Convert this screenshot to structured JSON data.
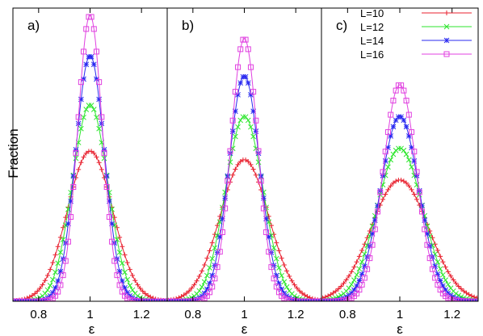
{
  "figure": {
    "ylabel": "Fraction",
    "panel_labels": [
      "a)",
      "b)",
      "c)"
    ]
  },
  "legend": {
    "entries": [
      {
        "label": "L=10",
        "color": "#e8212f",
        "marker": "plus"
      },
      {
        "label": "L=12",
        "color": "#2ee62e",
        "marker": "cross"
      },
      {
        "label": "L=14",
        "color": "#2929f0",
        "marker": "star"
      },
      {
        "label": "L=16",
        "color": "#e040e0",
        "marker": "open-square"
      }
    ],
    "placement": "top-right of panel c"
  },
  "chart_data": [
    {
      "type": "line",
      "panel": "a)",
      "xlabel": "ε",
      "ylabel": "Fraction",
      "xlim": [
        0.7,
        1.3
      ],
      "ylim": [
        0,
        1
      ],
      "xticks": [
        "0.8",
        "1",
        "1.2"
      ],
      "yticks": [],
      "grid": false,
      "model": "gaussian-like peak centered at x0",
      "series": [
        {
          "name": "L=10",
          "peak": 0.52,
          "center": 1.0,
          "sigma": 0.088
        },
        {
          "name": "L=12",
          "peak": 0.68,
          "center": 1.0,
          "sigma": 0.069
        },
        {
          "name": "L=14",
          "peak": 0.85,
          "center": 1.0,
          "sigma": 0.056
        },
        {
          "name": "L=16",
          "peak": 0.99,
          "center": 1.0,
          "sigma": 0.048
        }
      ]
    },
    {
      "type": "line",
      "panel": "b)",
      "xlabel": "ε",
      "ylabel": "",
      "xlim": [
        0.7,
        1.3
      ],
      "ylim": [
        0,
        1
      ],
      "xticks": [
        "0.8",
        "1",
        "1.2"
      ],
      "yticks": [],
      "grid": false,
      "series": [
        {
          "name": "L=10",
          "peak": 0.49,
          "center": 1.0,
          "sigma": 0.094
        },
        {
          "name": "L=12",
          "peak": 0.64,
          "center": 1.0,
          "sigma": 0.073
        },
        {
          "name": "L=14",
          "peak": 0.78,
          "center": 1.0,
          "sigma": 0.06
        },
        {
          "name": "L=16",
          "peak": 0.91,
          "center": 1.0,
          "sigma": 0.052
        }
      ]
    },
    {
      "type": "line",
      "panel": "c)",
      "xlabel": "ε",
      "ylabel": "",
      "xlim": [
        0.7,
        1.3
      ],
      "ylim": [
        0,
        1
      ],
      "xticks": [
        "0.8",
        "1",
        "1.2"
      ],
      "yticks": [],
      "grid": false,
      "series": [
        {
          "name": "L=10",
          "peak": 0.42,
          "center": 1.0,
          "sigma": 0.11
        },
        {
          "name": "L=12",
          "peak": 0.53,
          "center": 1.0,
          "sigma": 0.088
        },
        {
          "name": "L=14",
          "peak": 0.64,
          "center": 1.0,
          "sigma": 0.074
        },
        {
          "name": "L=16",
          "peak": 0.75,
          "center": 1.0,
          "sigma": 0.064
        }
      ]
    }
  ]
}
